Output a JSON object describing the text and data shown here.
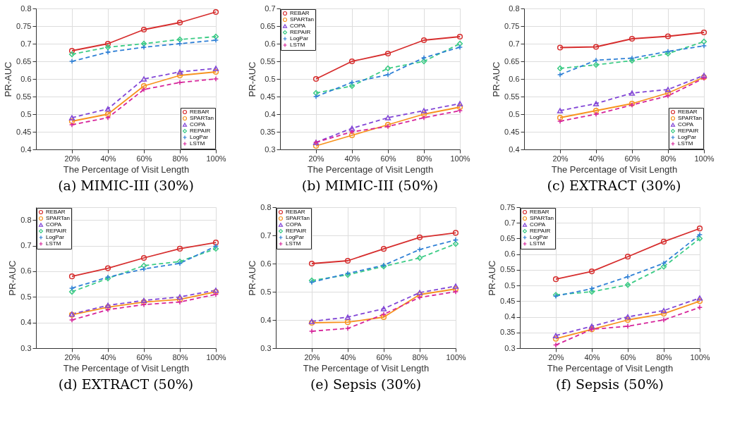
{
  "chart_data": [
    {
      "type": "line",
      "title": "(a) MIMIC-III (30%)",
      "xlabel": "The Percentage of Visit Length",
      "ylabel": "PR-AUC",
      "x": [
        20,
        40,
        60,
        80,
        100
      ],
      "xlim": [
        0,
        100
      ],
      "xticks": [
        {
          "value": 20,
          "label": "20%"
        },
        {
          "value": 40,
          "label": "40%"
        },
        {
          "value": 60,
          "label": "60%"
        },
        {
          "value": 80,
          "label": "80%"
        },
        {
          "value": 100,
          "label": "100%"
        }
      ],
      "ylim": [
        0.4,
        0.8
      ],
      "yticks": [
        0.4,
        0.45,
        0.5,
        0.55,
        0.6,
        0.65,
        0.7,
        0.75,
        0.8
      ],
      "grid": true,
      "legend": "bottom right",
      "series": [
        {
          "name": "REBAR",
          "color": "#d62d2d",
          "marker": "circle",
          "line_style": "solid",
          "values": [
            0.68,
            0.7,
            0.74,
            0.76,
            0.79
          ]
        },
        {
          "name": "SPARTan",
          "color": "#f7931e",
          "marker": "circle",
          "line_style": "solid",
          "values": [
            0.48,
            0.5,
            0.58,
            0.61,
            0.62
          ]
        },
        {
          "name": "COPA",
          "color": "#8246d6",
          "marker": "triangle",
          "line_style": "dashed",
          "values": [
            0.49,
            0.515,
            0.6,
            0.62,
            0.63
          ]
        },
        {
          "name": "REPAIR",
          "color": "#3dcc86",
          "marker": "diamond",
          "line_style": "dashed",
          "values": [
            0.67,
            0.69,
            0.7,
            0.712,
            0.72
          ]
        },
        {
          "name": "LogPar",
          "color": "#2f80d6",
          "marker": "cross",
          "line_style": "dashed",
          "values": [
            0.65,
            0.676,
            0.69,
            0.7,
            0.71
          ]
        },
        {
          "name": "LSTM",
          "color": "#d6249a",
          "marker": "cross",
          "line_style": "dashed",
          "values": [
            0.47,
            0.49,
            0.57,
            0.59,
            0.6
          ]
        }
      ]
    },
    {
      "type": "line",
      "title": "(b) MIMIC-III (50%)",
      "xlabel": "The Percentage of Visit Length",
      "ylabel": "PR-AUC",
      "x": [
        20,
        40,
        60,
        80,
        100
      ],
      "xlim": [
        0,
        100
      ],
      "xticks": [
        {
          "value": 20,
          "label": "20%"
        },
        {
          "value": 40,
          "label": "40%"
        },
        {
          "value": 60,
          "label": "60%"
        },
        {
          "value": 80,
          "label": "80%"
        },
        {
          "value": 100,
          "label": "100%"
        }
      ],
      "ylim": [
        0.3,
        0.7
      ],
      "yticks": [
        0.3,
        0.35,
        0.4,
        0.45,
        0.5,
        0.55,
        0.6,
        0.65,
        0.7
      ],
      "grid": true,
      "legend": "top left",
      "series": [
        {
          "name": "REBAR",
          "color": "#d62d2d",
          "marker": "circle",
          "line_style": "solid",
          "values": [
            0.5,
            0.55,
            0.572,
            0.61,
            0.62
          ]
        },
        {
          "name": "SPARTan",
          "color": "#f7931e",
          "marker": "circle",
          "line_style": "solid",
          "values": [
            0.31,
            0.34,
            0.37,
            0.4,
            0.42
          ]
        },
        {
          "name": "COPA",
          "color": "#8246d6",
          "marker": "triangle",
          "line_style": "dashed",
          "values": [
            0.32,
            0.36,
            0.39,
            0.41,
            0.43
          ]
        },
        {
          "name": "REPAIR",
          "color": "#3dcc86",
          "marker": "diamond",
          "line_style": "dashed",
          "values": [
            0.46,
            0.48,
            0.53,
            0.55,
            0.6
          ]
        },
        {
          "name": "LogPar",
          "color": "#2f80d6",
          "marker": "cross",
          "line_style": "dashed",
          "values": [
            0.45,
            0.49,
            0.512,
            0.56,
            0.59
          ]
        },
        {
          "name": "LSTM",
          "color": "#d6249a",
          "marker": "cross",
          "line_style": "dashed",
          "values": [
            0.32,
            0.35,
            0.365,
            0.39,
            0.41
          ]
        }
      ]
    },
    {
      "type": "line",
      "title": "(c) EXTRACT (30%)",
      "xlabel": "The Percentage of Visit Length",
      "ylabel": "PR-AUC",
      "x": [
        20,
        40,
        60,
        80,
        100
      ],
      "xlim": [
        0,
        100
      ],
      "xticks": [
        {
          "value": 20,
          "label": "20%"
        },
        {
          "value": 40,
          "label": "40%"
        },
        {
          "value": 60,
          "label": "60%"
        },
        {
          "value": 80,
          "label": "80%"
        },
        {
          "value": 100,
          "label": "100%"
        }
      ],
      "ylim": [
        0.4,
        0.8
      ],
      "yticks": [
        0.4,
        0.45,
        0.5,
        0.55,
        0.6,
        0.65,
        0.7,
        0.75,
        0.8
      ],
      "grid": true,
      "legend": "bottom right",
      "series": [
        {
          "name": "REBAR",
          "color": "#d62d2d",
          "marker": "circle",
          "line_style": "solid",
          "values": [
            0.689,
            0.691,
            0.714,
            0.721,
            0.732
          ]
        },
        {
          "name": "SPARTan",
          "color": "#f7931e",
          "marker": "circle",
          "line_style": "solid",
          "values": [
            0.49,
            0.51,
            0.53,
            0.56,
            0.605
          ]
        },
        {
          "name": "COPA",
          "color": "#8246d6",
          "marker": "triangle",
          "line_style": "dashed",
          "values": [
            0.51,
            0.53,
            0.56,
            0.57,
            0.61
          ]
        },
        {
          "name": "REPAIR",
          "color": "#3dcc86",
          "marker": "diamond",
          "line_style": "dashed",
          "values": [
            0.63,
            0.64,
            0.652,
            0.672,
            0.706
          ]
        },
        {
          "name": "LogPar",
          "color": "#2f80d6",
          "marker": "cross",
          "line_style": "dashed",
          "values": [
            0.612,
            0.653,
            0.659,
            0.678,
            0.694
          ]
        },
        {
          "name": "LSTM",
          "color": "#d6249a",
          "marker": "cross",
          "line_style": "dashed",
          "values": [
            0.48,
            0.5,
            0.526,
            0.552,
            0.602
          ]
        }
      ]
    },
    {
      "type": "line",
      "title": "(d) EXTRACT (50%)",
      "xlabel": "The Percentage of Visit Length",
      "ylabel": "PR-AUC",
      "x": [
        20,
        40,
        60,
        80,
        100
      ],
      "xlim": [
        0,
        100
      ],
      "xticks": [
        {
          "value": 20,
          "label": "20%"
        },
        {
          "value": 40,
          "label": "40%"
        },
        {
          "value": 60,
          "label": "60%"
        },
        {
          "value": 80,
          "label": "80%"
        },
        {
          "value": 100,
          "label": "100%"
        }
      ],
      "ylim": [
        0.3,
        0.85
      ],
      "yticks": [
        0.3,
        0.4,
        0.5,
        0.6,
        0.7,
        0.8
      ],
      "grid": true,
      "legend": "top left",
      "series": [
        {
          "name": "REBAR",
          "color": "#d62d2d",
          "marker": "circle",
          "line_style": "solid",
          "values": [
            0.58,
            0.612,
            0.652,
            0.688,
            0.712
          ]
        },
        {
          "name": "SPARTan",
          "color": "#f7931e",
          "marker": "circle",
          "line_style": "solid",
          "values": [
            0.43,
            0.46,
            0.48,
            0.49,
            0.52
          ]
        },
        {
          "name": "COPA",
          "color": "#8246d6",
          "marker": "triangle",
          "line_style": "dashed",
          "values": [
            0.433,
            0.467,
            0.486,
            0.5,
            0.526
          ]
        },
        {
          "name": "REPAIR",
          "color": "#3dcc86",
          "marker": "diamond",
          "line_style": "dashed",
          "values": [
            0.52,
            0.572,
            0.622,
            0.638,
            0.688
          ]
        },
        {
          "name": "LogPar",
          "color": "#2f80d6",
          "marker": "cross",
          "line_style": "dashed",
          "values": [
            0.534,
            0.577,
            0.609,
            0.631,
            0.698
          ]
        },
        {
          "name": "LSTM",
          "color": "#d6249a",
          "marker": "cross",
          "line_style": "dashed",
          "values": [
            0.41,
            0.45,
            0.47,
            0.48,
            0.51
          ]
        }
      ]
    },
    {
      "type": "line",
      "title": "(e) Sepsis (30%)",
      "xlabel": "The Percentage of Visit Length",
      "ylabel": "PR-AUC",
      "x": [
        20,
        40,
        60,
        80,
        100
      ],
      "xlim": [
        0,
        100
      ],
      "xticks": [
        {
          "value": 20,
          "label": "20%"
        },
        {
          "value": 40,
          "label": "40%"
        },
        {
          "value": 60,
          "label": "60%"
        },
        {
          "value": 80,
          "label": "80%"
        },
        {
          "value": 100,
          "label": "100%"
        }
      ],
      "ylim": [
        0.3,
        0.8
      ],
      "yticks": [
        0.3,
        0.4,
        0.5,
        0.6,
        0.7,
        0.8
      ],
      "grid": true,
      "legend": "top left",
      "series": [
        {
          "name": "REBAR",
          "color": "#d62d2d",
          "marker": "circle",
          "line_style": "solid",
          "values": [
            0.6,
            0.61,
            0.652,
            0.693,
            0.709
          ]
        },
        {
          "name": "SPARTan",
          "color": "#f7931e",
          "marker": "circle",
          "line_style": "solid",
          "values": [
            0.39,
            0.392,
            0.41,
            0.49,
            0.51
          ]
        },
        {
          "name": "COPA",
          "color": "#8246d6",
          "marker": "triangle",
          "line_style": "dashed",
          "values": [
            0.395,
            0.41,
            0.44,
            0.497,
            0.52
          ]
        },
        {
          "name": "REPAIR",
          "color": "#3dcc86",
          "marker": "diamond",
          "line_style": "dashed",
          "values": [
            0.54,
            0.56,
            0.59,
            0.62,
            0.67
          ]
        },
        {
          "name": "LogPar",
          "color": "#2f80d6",
          "marker": "cross",
          "line_style": "dashed",
          "values": [
            0.534,
            0.565,
            0.594,
            0.65,
            0.684
          ]
        },
        {
          "name": "LSTM",
          "color": "#d6249a",
          "marker": "cross",
          "line_style": "dashed",
          "values": [
            0.36,
            0.37,
            0.42,
            0.48,
            0.5
          ]
        }
      ]
    },
    {
      "type": "line",
      "title": "(f) Sepsis (50%)",
      "xlabel": "The Percentage of Visit Length",
      "ylabel": "PR-AUC",
      "x": [
        20,
        40,
        60,
        80,
        100
      ],
      "xlim": [
        0,
        100
      ],
      "xticks": [
        {
          "value": 20,
          "label": "20%"
        },
        {
          "value": 40,
          "label": "40%"
        },
        {
          "value": 60,
          "label": "60%"
        },
        {
          "value": 80,
          "label": "80%"
        },
        {
          "value": 100,
          "label": "100%"
        }
      ],
      "ylim": [
        0.3,
        0.75
      ],
      "yticks": [
        0.3,
        0.35,
        0.4,
        0.45,
        0.5,
        0.55,
        0.6,
        0.65,
        0.7,
        0.75
      ],
      "grid": true,
      "legend": "top left",
      "series": [
        {
          "name": "REBAR",
          "color": "#d62d2d",
          "marker": "circle",
          "line_style": "solid",
          "values": [
            0.52,
            0.545,
            0.592,
            0.64,
            0.682
          ]
        },
        {
          "name": "SPARTan",
          "color": "#f7931e",
          "marker": "circle",
          "line_style": "solid",
          "values": [
            0.33,
            0.36,
            0.39,
            0.41,
            0.45
          ]
        },
        {
          "name": "COPA",
          "color": "#8246d6",
          "marker": "triangle",
          "line_style": "dashed",
          "values": [
            0.34,
            0.37,
            0.4,
            0.42,
            0.46
          ]
        },
        {
          "name": "REPAIR",
          "color": "#3dcc86",
          "marker": "diamond",
          "line_style": "dashed",
          "values": [
            0.47,
            0.48,
            0.502,
            0.56,
            0.65
          ]
        },
        {
          "name": "LogPar",
          "color": "#2f80d6",
          "marker": "cross",
          "line_style": "dashed",
          "values": [
            0.466,
            0.49,
            0.528,
            0.571,
            0.662
          ]
        },
        {
          "name": "LSTM",
          "color": "#d6249a",
          "marker": "cross",
          "line_style": "dashed",
          "values": [
            0.31,
            0.36,
            0.37,
            0.39,
            0.43
          ]
        }
      ]
    }
  ]
}
